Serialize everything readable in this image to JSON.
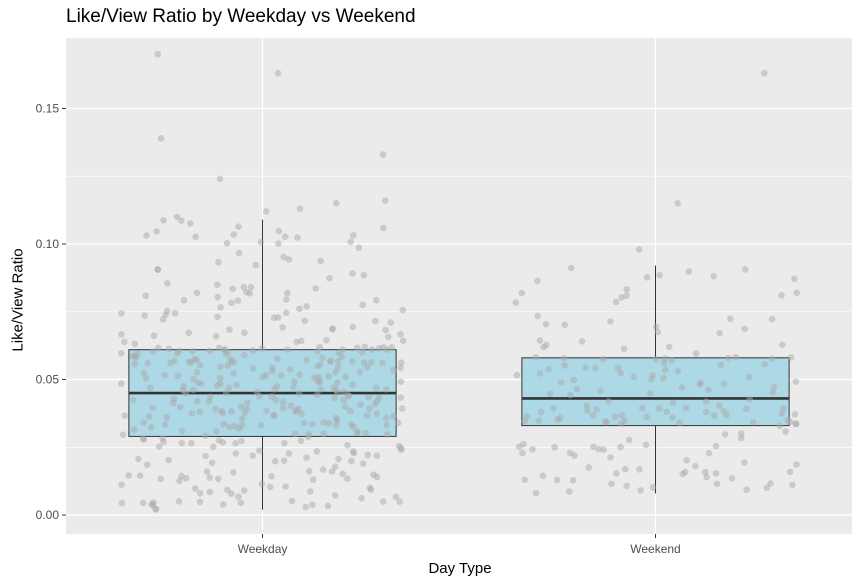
{
  "chart_data": {
    "type": "box",
    "title": "Like/View Ratio by Weekday vs Weekend",
    "xlabel": "Day Type",
    "ylabel": "Like/View Ratio",
    "categories": [
      "Weekday",
      "Weekend"
    ],
    "ylim": [
      -0.007,
      0.176
    ],
    "yticks": [
      0.0,
      0.05,
      0.1,
      0.15
    ],
    "ytick_labels": [
      "0.00",
      "0.05",
      "0.10",
      "0.15"
    ],
    "grid": true,
    "box_fill": "#ADD8E6",
    "point_color": "#A9A9A9",
    "panel_bg": "#EBEBEB",
    "boxes": [
      {
        "category": "Weekday",
        "whisker_low": 0.002,
        "q1": 0.029,
        "median": 0.045,
        "q3": 0.061,
        "whisker_high": 0.109
      },
      {
        "category": "Weekend",
        "whisker_low": 0.008,
        "q1": 0.033,
        "median": 0.043,
        "q3": 0.058,
        "whisker_high": 0.092
      }
    ],
    "outliers": [
      {
        "category": "Weekday",
        "values": [
          0.17,
          0.163,
          0.139,
          0.133,
          0.124,
          0.116,
          0.115,
          0.113,
          0.112,
          0.11
        ]
      },
      {
        "category": "Weekend",
        "values": [
          0.163,
          0.115,
          0.098
        ]
      }
    ]
  }
}
